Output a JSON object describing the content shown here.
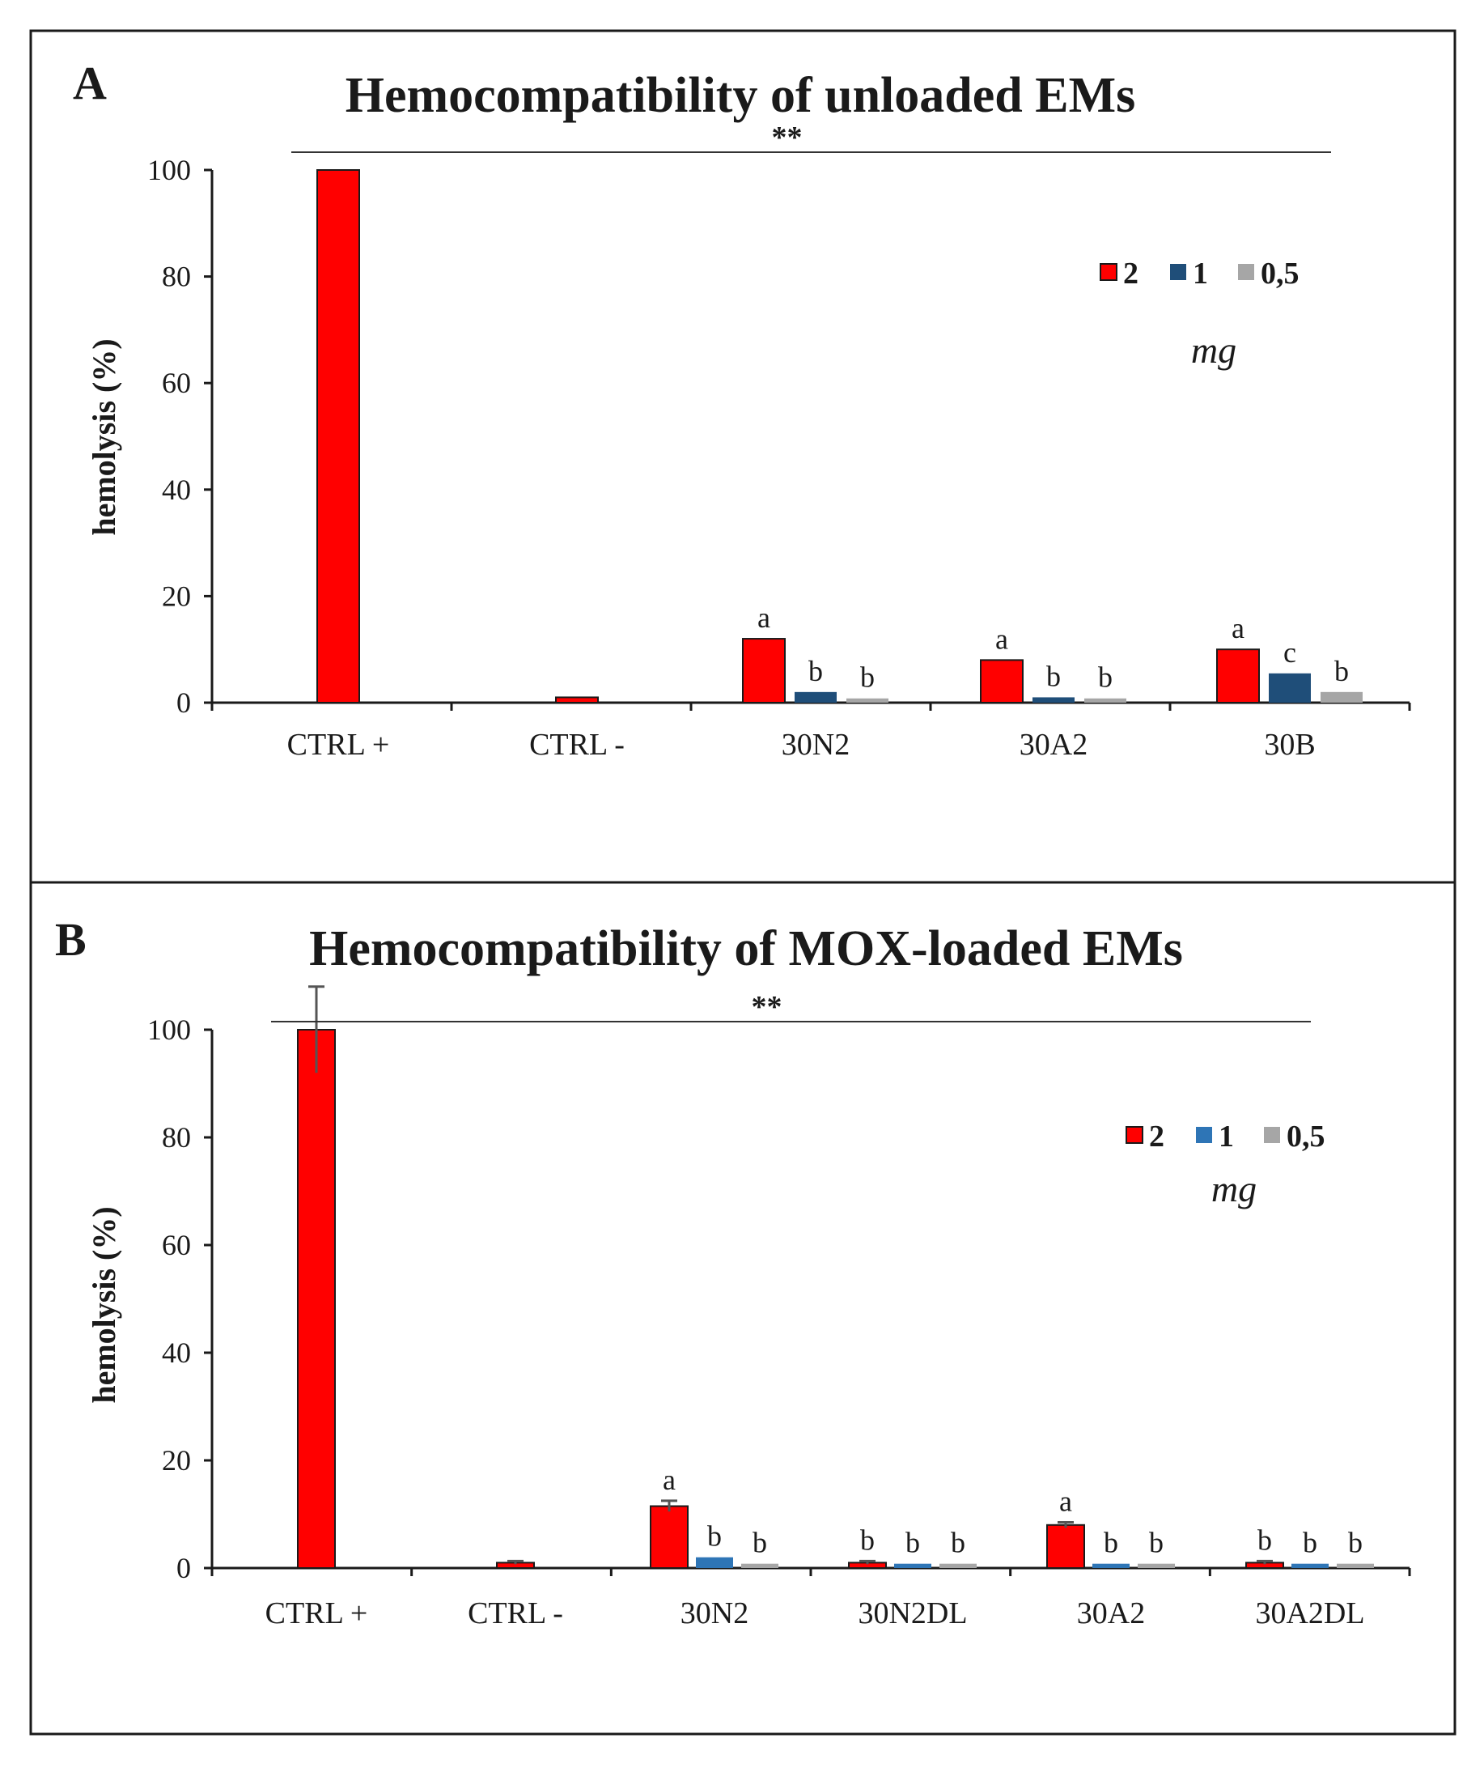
{
  "colors": {
    "series": [
      "#ff0000",
      "#1f4e79",
      "#a6a6a6"
    ],
    "series_b": [
      "#ff0000",
      "#2e75b6",
      "#a6a6a6"
    ],
    "border": "#1a1a1a"
  },
  "chart_data": [
    {
      "type": "bar",
      "panel": "A",
      "title": "Hemocompatibility of unloaded EMs",
      "ylabel": "hemolysis (%)",
      "xlabel": "",
      "ylim": [
        0,
        100
      ],
      "yticks": [
        "0",
        "20",
        "40",
        "60",
        "80",
        "100"
      ],
      "categories": [
        "CTRL +",
        "CTRL -",
        "30N2",
        "30A2",
        "30B"
      ],
      "series": [
        {
          "name": "2",
          "values": [
            100,
            1,
            12,
            8,
            10
          ]
        },
        {
          "name": "1",
          "values": [
            null,
            null,
            2,
            1,
            5.5
          ]
        },
        {
          "name": "0,5",
          "values": [
            null,
            null,
            0.8,
            0.8,
            2
          ]
        }
      ],
      "annotations": [
        [
          null,
          null,
          null
        ],
        [
          null,
          null,
          null
        ],
        [
          "a",
          "b",
          "b"
        ],
        [
          "a",
          "b",
          "b"
        ],
        [
          "a",
          "c",
          "b"
        ]
      ],
      "significance": "**",
      "legend_unit": "mg",
      "legend_position": "top-right"
    },
    {
      "type": "bar",
      "panel": "B",
      "title": "Hemocompatibility of MOX-loaded EMs",
      "ylabel": "hemolysis (%)",
      "xlabel": "",
      "ylim": [
        0,
        100
      ],
      "yticks": [
        "0",
        "20",
        "40",
        "60",
        "80",
        "100"
      ],
      "categories": [
        "CTRL +",
        "CTRL -",
        "30N2",
        "30N2DL",
        "30A2",
        "30A2DL"
      ],
      "series": [
        {
          "name": "2",
          "values": [
            100,
            1,
            11.5,
            1,
            8,
            1
          ]
        },
        {
          "name": "1",
          "values": [
            null,
            null,
            2,
            0.8,
            0.8,
            0.8
          ]
        },
        {
          "name": "0,5",
          "values": [
            null,
            null,
            0.8,
            0.8,
            0.8,
            0.8
          ]
        }
      ],
      "error": [
        [
          8,
          0.3,
          1,
          0.3,
          0.5,
          0.3
        ],
        [
          null,
          null,
          null,
          null,
          null,
          null
        ],
        [
          null,
          null,
          null,
          null,
          null,
          null
        ]
      ],
      "annotations": [
        [
          null,
          null,
          null
        ],
        [
          null,
          null,
          null
        ],
        [
          "a",
          "b",
          "b"
        ],
        [
          "b",
          "b",
          "b"
        ],
        [
          "a",
          "b",
          "b"
        ],
        [
          "b",
          "b",
          "b"
        ]
      ],
      "significance": "**",
      "legend_unit": "mg",
      "legend_position": "top-right"
    }
  ]
}
